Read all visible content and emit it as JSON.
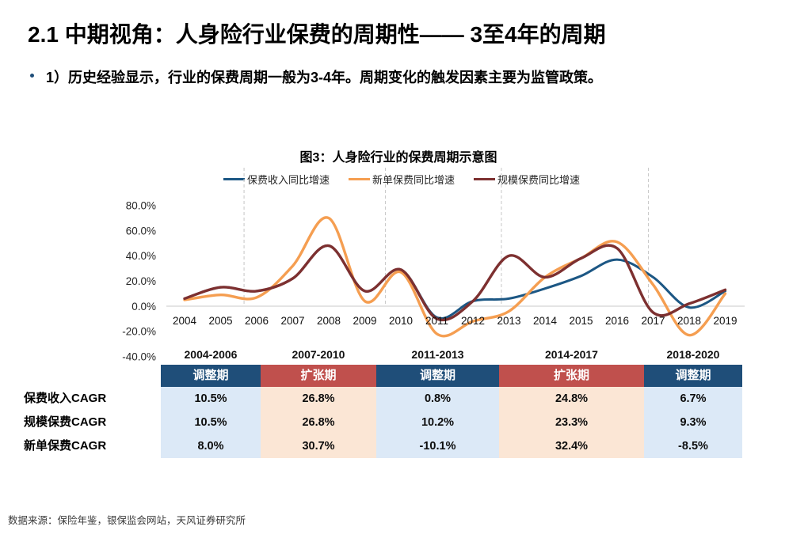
{
  "header": {
    "title": "2.1 中期视角：人身险行业保费的周期性—— 3至4年的周期",
    "bullet": "1）历史经验显示，行业的保费周期一般为3-4年。周期变化的触发因素主要为监管政策。"
  },
  "chart_data": {
    "type": "line",
    "title": "图3：人身险行业的保费周期示意图",
    "x": [
      2004,
      2005,
      2006,
      2007,
      2008,
      2009,
      2010,
      2011,
      2012,
      2013,
      2014,
      2015,
      2016,
      2017,
      2018,
      2019
    ],
    "x_labels": [
      "2004",
      "2005",
      "2006",
      "2007",
      "2008",
      "2009",
      "2010",
      "2011",
      "2012",
      "2013",
      "2014",
      "2015",
      "2016",
      "2017",
      "2018",
      "2019"
    ],
    "series": [
      {
        "name": "保费收入同比增速",
        "color": "#1C5784",
        "values": [
          6,
          15,
          12,
          22,
          48,
          12,
          29,
          -9,
          4,
          6,
          14,
          24,
          37,
          23,
          -1,
          12
        ]
      },
      {
        "name": "新单保费同比增速",
        "color": "#F59E51",
        "values": [
          5,
          9,
          7,
          32,
          70,
          4,
          27,
          -22,
          -12,
          -4,
          23,
          38,
          51,
          17,
          -23,
          10
        ]
      },
      {
        "name": "规模保费同比增速",
        "color": "#7D3030",
        "values": [
          6,
          15,
          12,
          22,
          48,
          12,
          29,
          -10,
          4,
          40,
          23,
          38,
          46,
          -5,
          2,
          13
        ]
      }
    ],
    "ylim": [
      -40,
      80
    ],
    "y_ticks": [
      {
        "v": 80,
        "label": "80.0%"
      },
      {
        "v": 60,
        "label": "60.0%"
      },
      {
        "v": 40,
        "label": "40.0%"
      },
      {
        "v": 20,
        "label": "20.0%"
      },
      {
        "v": 0,
        "label": "0.0%"
      },
      {
        "v": -20,
        "label": "-20.0%"
      },
      {
        "v": -40,
        "label": "-40.0%"
      }
    ],
    "legend_position": "top",
    "grid": "vertical dashed period dividers, light zero axis",
    "period_dividers": [
      2005.65,
      2009.57,
      2012.79,
      2016.87
    ]
  },
  "table": {
    "row_labels": [
      "保费收入CAGR",
      "规模保费CAGR",
      "新单保费CAGR"
    ],
    "columns": [
      {
        "period": "2004-2006",
        "phase": "调整期",
        "values": [
          "10.5%",
          "10.5%",
          "8.0%"
        ]
      },
      {
        "period": "2007-2010",
        "phase": "扩张期",
        "values": [
          "26.8%",
          "26.8%",
          "30.7%"
        ]
      },
      {
        "period": "2011-2013",
        "phase": "调整期",
        "values": [
          "0.8%",
          "10.2%",
          "-10.1%"
        ]
      },
      {
        "period": "2014-2017",
        "phase": "扩张期",
        "values": [
          "24.8%",
          "23.3%",
          "32.4%"
        ]
      },
      {
        "period": "2018-2020",
        "phase": "调整期",
        "values": [
          "6.7%",
          "9.3%",
          "-8.5%"
        ]
      }
    ],
    "colors": {
      "adjust_header": "#1F4E79",
      "expand_header": "#C0504D",
      "adjust_cell": "#DCE9F7",
      "expand_cell": "#FBE6D5"
    }
  },
  "footer": {
    "source": "数据来源：保险年鉴，银保监会网站，天风证券研究所"
  }
}
